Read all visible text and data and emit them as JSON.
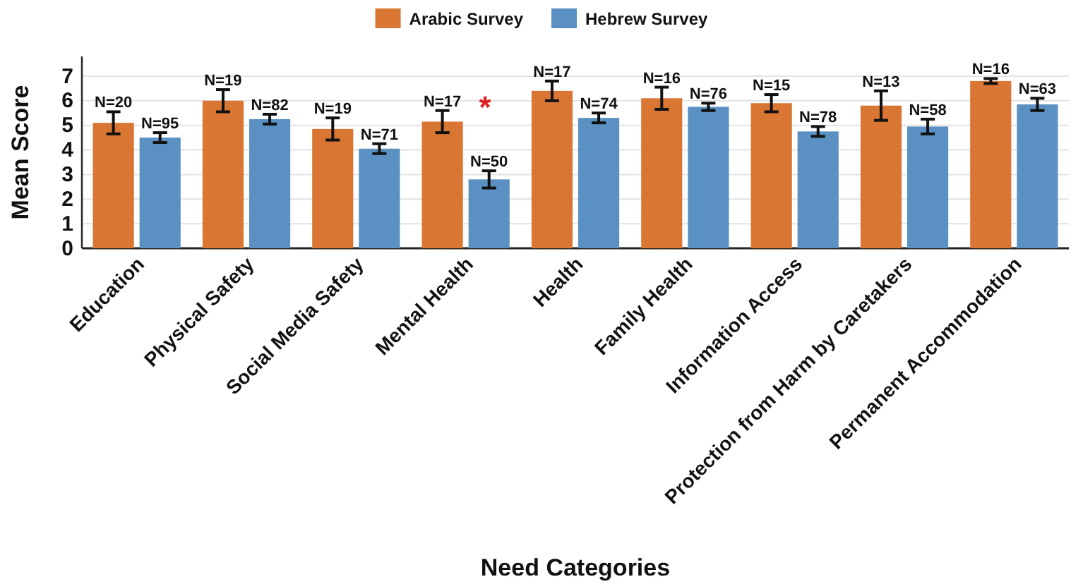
{
  "chart_data": {
    "type": "bar",
    "xlabel": "Need Categories",
    "ylabel": "Mean Score",
    "categories": [
      "Education",
      "Physical Safety",
      "Social Media Safety",
      "Mental Health",
      "Health",
      "Family Health",
      "Information Access",
      "Protection from Harm by Caretakers",
      "Permanent Accommodation"
    ],
    "series": [
      {
        "name": "Arabic Survey",
        "color": "#d97634",
        "values": [
          5.1,
          6.0,
          4.85,
          5.15,
          6.4,
          6.1,
          5.9,
          5.8,
          6.8
        ],
        "errors": [
          0.45,
          0.45,
          0.45,
          0.45,
          0.4,
          0.45,
          0.35,
          0.6,
          0.1
        ]
      },
      {
        "name": "Hebrew Survey",
        "color": "#5b91c2",
        "values": [
          4.5,
          5.25,
          4.05,
          2.8,
          5.3,
          5.75,
          4.75,
          4.95,
          5.85
        ],
        "errors": [
          0.2,
          0.2,
          0.2,
          0.35,
          0.2,
          0.15,
          0.2,
          0.3,
          0.25
        ]
      }
    ],
    "annotations": [
      "N=20",
      "N=95",
      "N=19",
      "N=82",
      "N=19",
      "N=71",
      "N=17",
      "N=50",
      "N=17",
      "N=74",
      "N=16",
      "N=76",
      "N=15",
      "N=78",
      "N=13",
      "N=58",
      "N=16",
      "N=63",
      "*"
    ],
    "ylim": [
      0,
      7.8
    ],
    "yticks": [
      0,
      1,
      2,
      3,
      4,
      5,
      6,
      7
    ],
    "grid": "y",
    "legend": "top"
  }
}
